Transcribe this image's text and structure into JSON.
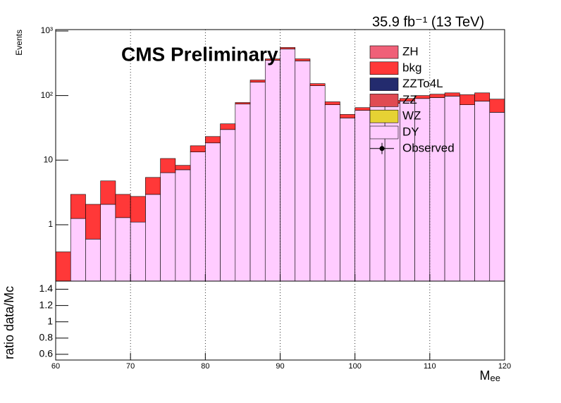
{
  "chart_data": [
    {
      "type": "histogram",
      "stacked": true,
      "log_y": true,
      "grid_x": true,
      "title": "CMS Preliminary",
      "lumi": "35.9 fb⁻¹ (13 TeV)",
      "ylabel": "Events",
      "bins": [
        60,
        62,
        64,
        66,
        68,
        70,
        72,
        74,
        76,
        78,
        80,
        82,
        84,
        86,
        88,
        90,
        92,
        94,
        96,
        98,
        100,
        102,
        104,
        106,
        108,
        110,
        112,
        114,
        116,
        118,
        120
      ],
      "xlim": [
        60,
        120
      ],
      "xticks": [
        60,
        70,
        80,
        90,
        100,
        110,
        120
      ],
      "ylim": [
        0.134,
        1050
      ],
      "yticks": [
        1,
        10,
        {
          "value": 100,
          "label": "10²"
        },
        {
          "value": 1000,
          "label": "10³"
        }
      ],
      "series": [
        {
          "name": "ZH",
          "color": "#f06078",
          "values": [
            0,
            0,
            0,
            0,
            0,
            0,
            0,
            0,
            0,
            0,
            0,
            0,
            0,
            0,
            0,
            0,
            0,
            0,
            0,
            0,
            0,
            0,
            0,
            0,
            0,
            0,
            0,
            0,
            0,
            0
          ]
        },
        {
          "name": "bkg",
          "color": "#ff3838",
          "values": [
            0.26,
            1.7,
            1.47,
            2.7,
            1.66,
            1.64,
            2.45,
            4.2,
            1.2,
            3.3,
            4.7,
            6.7,
            4,
            13,
            18,
            28,
            26,
            11,
            8,
            6,
            6,
            4,
            8,
            8,
            10,
            12,
            12,
            31,
            28,
            33
          ]
        },
        {
          "name": "ZZTo4L",
          "color": "#232b6e",
          "values": [
            0,
            0,
            0,
            0,
            0,
            0,
            0,
            0,
            0,
            0,
            0,
            0,
            0,
            0,
            0,
            0,
            0,
            0,
            0,
            0,
            0,
            0,
            0,
            0,
            0,
            0,
            0,
            0,
            0,
            0
          ]
        },
        {
          "name": "ZZ",
          "color": "#e04a52",
          "values": [
            0,
            0,
            0,
            0,
            0,
            0,
            0,
            0,
            0,
            0,
            0,
            0,
            0,
            0,
            0,
            0,
            0,
            0,
            0,
            0,
            0,
            0,
            0,
            0,
            0,
            0,
            0,
            0,
            0,
            0
          ]
        },
        {
          "name": "WZ",
          "color": "#e6d234",
          "values": [
            0,
            0,
            0,
            0,
            0,
            0,
            0,
            0,
            0,
            0,
            0,
            0,
            0,
            0,
            0,
            0,
            0,
            0,
            0,
            0,
            0,
            0,
            0,
            0,
            0,
            0,
            0,
            0,
            0,
            0
          ]
        },
        {
          "name": "DY",
          "color": "#ffccff",
          "values": [
            0.12,
            1.25,
            0.6,
            2.07,
            1.29,
            1.1,
            2.95,
            6.4,
            7.1,
            13.4,
            18.5,
            29.8,
            74,
            161,
            352,
            527,
            344,
            142,
            72,
            45,
            59,
            70,
            76,
            82,
            90,
            93,
            98,
            72,
            82,
            55
          ]
        },
        {
          "name": "Observed",
          "color": "#000000",
          "style": "points",
          "values": [
            null,
            null,
            null,
            null,
            null,
            null,
            null,
            null,
            null,
            null,
            null,
            null,
            null,
            null,
            null,
            null,
            null,
            null,
            null,
            null,
            null,
            null,
            null,
            null,
            null,
            null,
            null,
            null,
            null,
            null
          ]
        }
      ]
    },
    {
      "type": "line",
      "ylabel": "ratio data/Mc",
      "xlabel": "M",
      "xlabel_sub": "ee",
      "xlim": [
        60,
        120
      ],
      "xticks": [
        60,
        70,
        80,
        90,
        100,
        110,
        120
      ],
      "ylim": [
        0.53,
        1.5
      ],
      "yticks": [
        0.6,
        0.8,
        1,
        1.2,
        1.4
      ],
      "grid_x": true,
      "series": []
    }
  ]
}
